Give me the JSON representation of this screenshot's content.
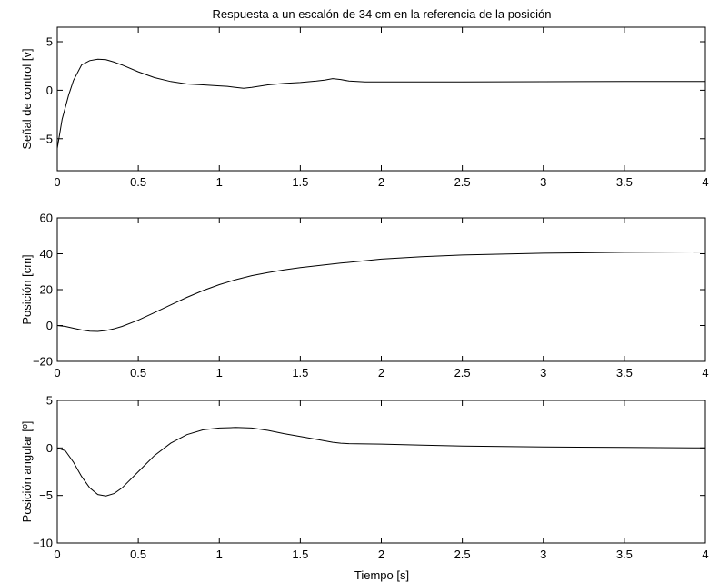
{
  "title": "Respuesta a un escalón de 34 cm en la referencia de la posición",
  "xlabel": "Tiempo [s]",
  "chart_data": [
    {
      "type": "line",
      "ylabel": "Señal de control [v]",
      "xlim": [
        0,
        4
      ],
      "ylim": [
        -8.3,
        6.5
      ],
      "xticks": [
        0,
        0.5,
        1,
        1.5,
        2,
        2.5,
        3,
        3.5,
        4
      ],
      "xtick_labels": [
        "0",
        "0.5",
        "1",
        "1.5",
        "2",
        "2.5",
        "3",
        "3.5",
        "4"
      ],
      "yticks": [
        -5,
        0,
        5
      ],
      "ytick_labels": [
        "−5",
        "0",
        "5"
      ],
      "grid": false,
      "series": [
        {
          "x": [
            0,
            0.03,
            0.07,
            0.1,
            0.15,
            0.2,
            0.25,
            0.3,
            0.35,
            0.4,
            0.5,
            0.6,
            0.7,
            0.8,
            0.9,
            1.0,
            1.05,
            1.1,
            1.15,
            1.2,
            1.3,
            1.4,
            1.5,
            1.6,
            1.65,
            1.7,
            1.75,
            1.8,
            1.9,
            2.0,
            2.5,
            3.0,
            3.5,
            4.0
          ],
          "y": [
            -6.0,
            -3.0,
            -0.5,
            1.0,
            2.6,
            3.05,
            3.2,
            3.15,
            2.9,
            2.6,
            1.9,
            1.3,
            0.9,
            0.65,
            0.55,
            0.45,
            0.4,
            0.3,
            0.2,
            0.3,
            0.55,
            0.7,
            0.8,
            0.95,
            1.05,
            1.2,
            1.1,
            0.95,
            0.85,
            0.85,
            0.85,
            0.88,
            0.9,
            0.9
          ]
        }
      ]
    },
    {
      "type": "line",
      "ylabel": "Posición [cm]",
      "xlim": [
        0,
        4
      ],
      "ylim": [
        -20,
        60
      ],
      "xticks": [
        0,
        0.5,
        1,
        1.5,
        2,
        2.5,
        3,
        3.5,
        4
      ],
      "xtick_labels": [
        "0",
        "0.5",
        "1",
        "1.5",
        "2",
        "2.5",
        "3",
        "3.5",
        "4"
      ],
      "yticks": [
        -20,
        0,
        20,
        40,
        60
      ],
      "ytick_labels": [
        "−20",
        "0",
        "20",
        "40",
        "60"
      ],
      "grid": false,
      "series": [
        {
          "x": [
            0,
            0.05,
            0.1,
            0.15,
            0.2,
            0.25,
            0.3,
            0.35,
            0.4,
            0.5,
            0.6,
            0.7,
            0.8,
            0.9,
            1.0,
            1.1,
            1.2,
            1.3,
            1.4,
            1.5,
            1.75,
            2.0,
            2.25,
            2.5,
            3.0,
            3.5,
            4.0
          ],
          "y": [
            0,
            -0.5,
            -1.5,
            -2.5,
            -3.2,
            -3.3,
            -2.8,
            -1.8,
            -0.5,
            3.0,
            7.2,
            11.5,
            15.7,
            19.5,
            22.8,
            25.5,
            27.8,
            29.5,
            31.0,
            32.3,
            34.8,
            37.0,
            38.4,
            39.3,
            40.3,
            40.8,
            41.0
          ]
        }
      ]
    },
    {
      "type": "line",
      "ylabel": "Posición angular [º]",
      "xlim": [
        0,
        4
      ],
      "ylim": [
        -10,
        5
      ],
      "xticks": [
        0,
        0.5,
        1,
        1.5,
        2,
        2.5,
        3,
        3.5,
        4
      ],
      "xtick_labels": [
        "0",
        "0.5",
        "1",
        "1.5",
        "2",
        "2.5",
        "3",
        "3.5",
        "4"
      ],
      "yticks": [
        -10,
        -5,
        0,
        5
      ],
      "ytick_labels": [
        "−10",
        "−5",
        "0",
        "5"
      ],
      "grid": false,
      "series": [
        {
          "x": [
            0,
            0.05,
            0.1,
            0.15,
            0.2,
            0.25,
            0.3,
            0.35,
            0.4,
            0.5,
            0.6,
            0.7,
            0.8,
            0.9,
            1.0,
            1.1,
            1.2,
            1.3,
            1.4,
            1.5,
            1.6,
            1.7,
            1.75,
            1.8,
            2.0,
            2.25,
            2.5,
            3.0,
            3.5,
            4.0
          ],
          "y": [
            0,
            -0.3,
            -1.5,
            -3.0,
            -4.2,
            -4.9,
            -5.05,
            -4.8,
            -4.2,
            -2.5,
            -0.8,
            0.5,
            1.4,
            1.9,
            2.1,
            2.15,
            2.1,
            1.85,
            1.5,
            1.2,
            0.9,
            0.6,
            0.5,
            0.45,
            0.4,
            0.3,
            0.2,
            0.1,
            0.05,
            0.0
          ]
        }
      ]
    }
  ]
}
